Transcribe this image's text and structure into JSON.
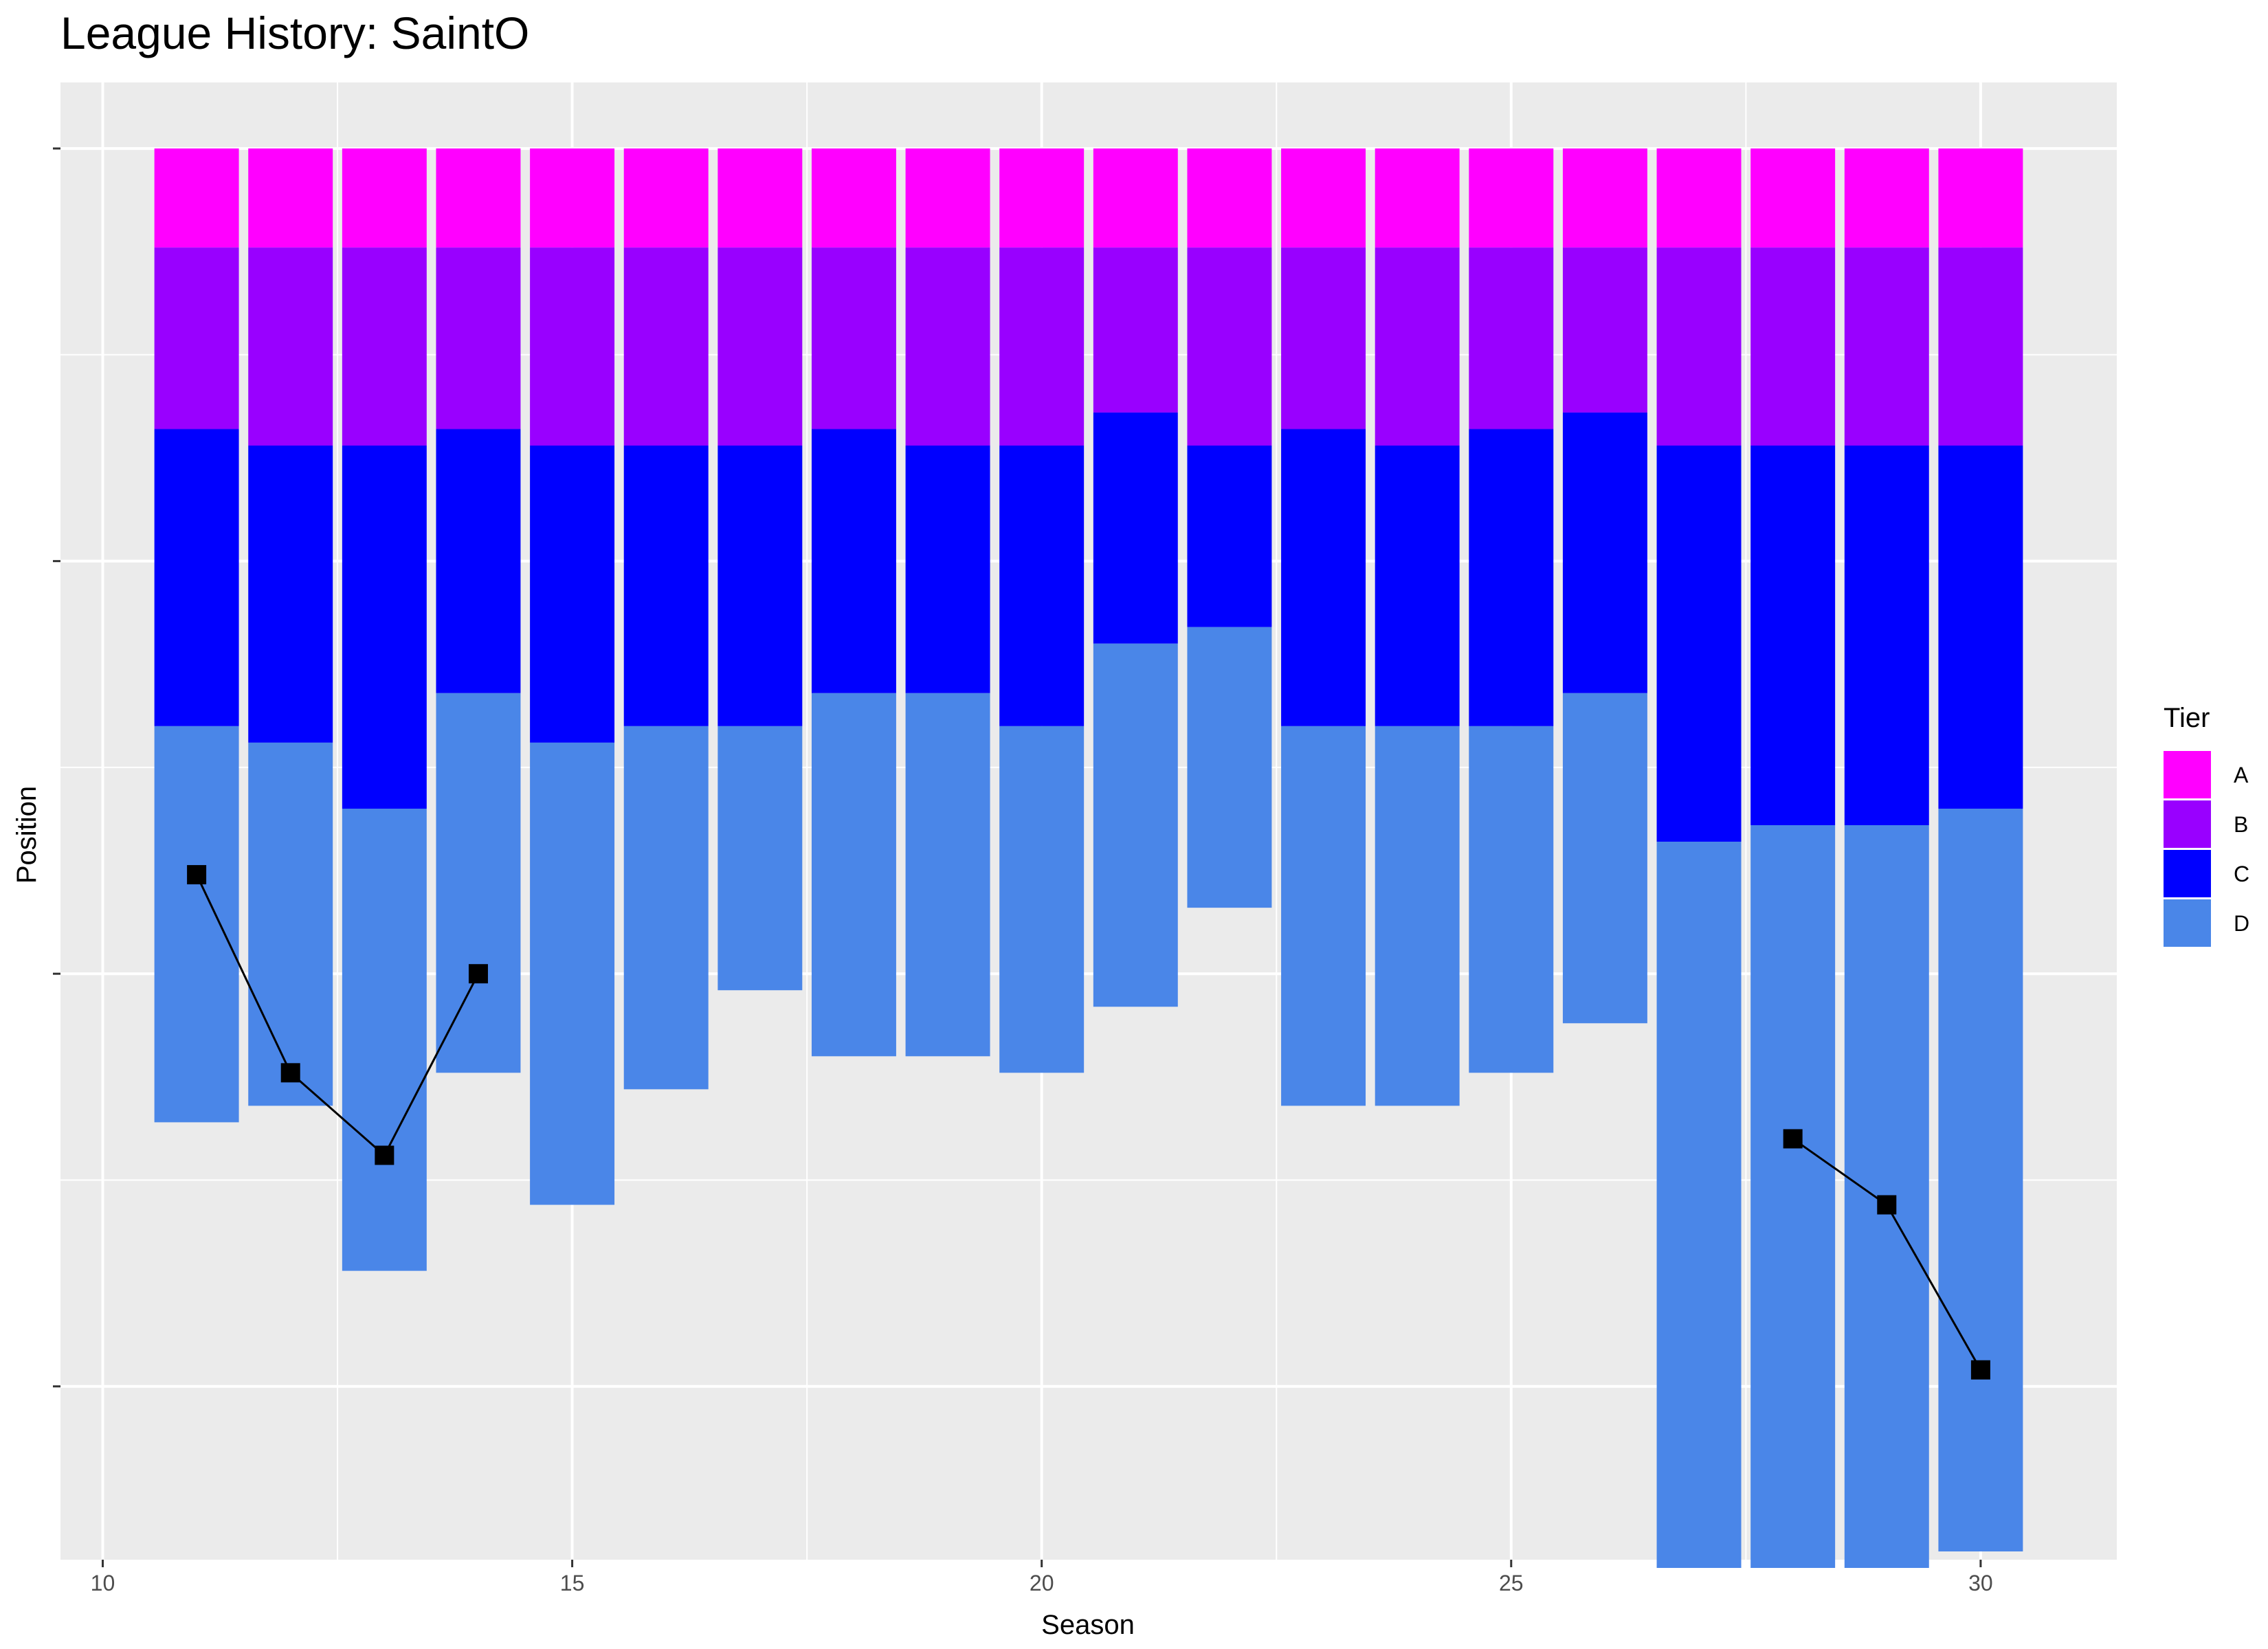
{
  "chart_data": {
    "type": "bar",
    "title": "League History: SaintO",
    "xlabel": "Season",
    "ylabel": "Position",
    "x_ticks": [
      10,
      15,
      20,
      25,
      30
    ],
    "xlim": [
      9.55,
      31.45
    ],
    "ylim": [
      -85.5,
      4
    ],
    "y_tick_values": [
      0,
      -25,
      -50,
      -75
    ],
    "y_tick_labels_shown": false,
    "grid": true,
    "legend": {
      "title": "Tier",
      "placement": "right",
      "entries": [
        {
          "label": "A",
          "color": "#FF00FF"
        },
        {
          "label": "B",
          "color": "#9900FF"
        },
        {
          "label": "C",
          "color": "#0000FF"
        },
        {
          "label": "D",
          "color": "#4A86E8"
        }
      ]
    },
    "seasons": [
      11,
      12,
      13,
      14,
      15,
      16,
      17,
      18,
      19,
      20,
      21,
      22,
      23,
      24,
      25,
      26,
      27,
      28,
      29,
      30
    ],
    "tier_sizes": {
      "A": [
        6,
        6,
        6,
        6,
        6,
        6,
        6,
        6,
        6,
        6,
        6,
        6,
        6,
        6,
        6,
        6,
        6,
        6,
        6,
        6
      ],
      "B": [
        11,
        12,
        12,
        11,
        12,
        12,
        12,
        11,
        12,
        12,
        10,
        12,
        11,
        12,
        11,
        10,
        12,
        12,
        12,
        12
      ],
      "C": [
        18,
        18,
        22,
        16,
        18,
        17,
        17,
        16,
        15,
        17,
        14,
        11,
        18,
        17,
        18,
        17,
        24,
        23,
        23,
        22
      ],
      "D": [
        24,
        22,
        28,
        23,
        28,
        22,
        16,
        22,
        22,
        21,
        22,
        17,
        23,
        23,
        21,
        20,
        44,
        45,
        45,
        45
      ]
    },
    "position_series": [
      {
        "season": 11,
        "position": -44
      },
      {
        "season": 12,
        "position": -56
      },
      {
        "season": 13,
        "position": -61
      },
      {
        "season": 14,
        "position": -50
      },
      {
        "season": 28,
        "position": -60
      },
      {
        "season": 29,
        "position": -64
      },
      {
        "season": 30,
        "position": -74
      }
    ],
    "colors": {
      "panel": "#EBEBEB",
      "gridline": "#FFFFFF",
      "line": "#000000",
      "point": "#000000"
    }
  }
}
